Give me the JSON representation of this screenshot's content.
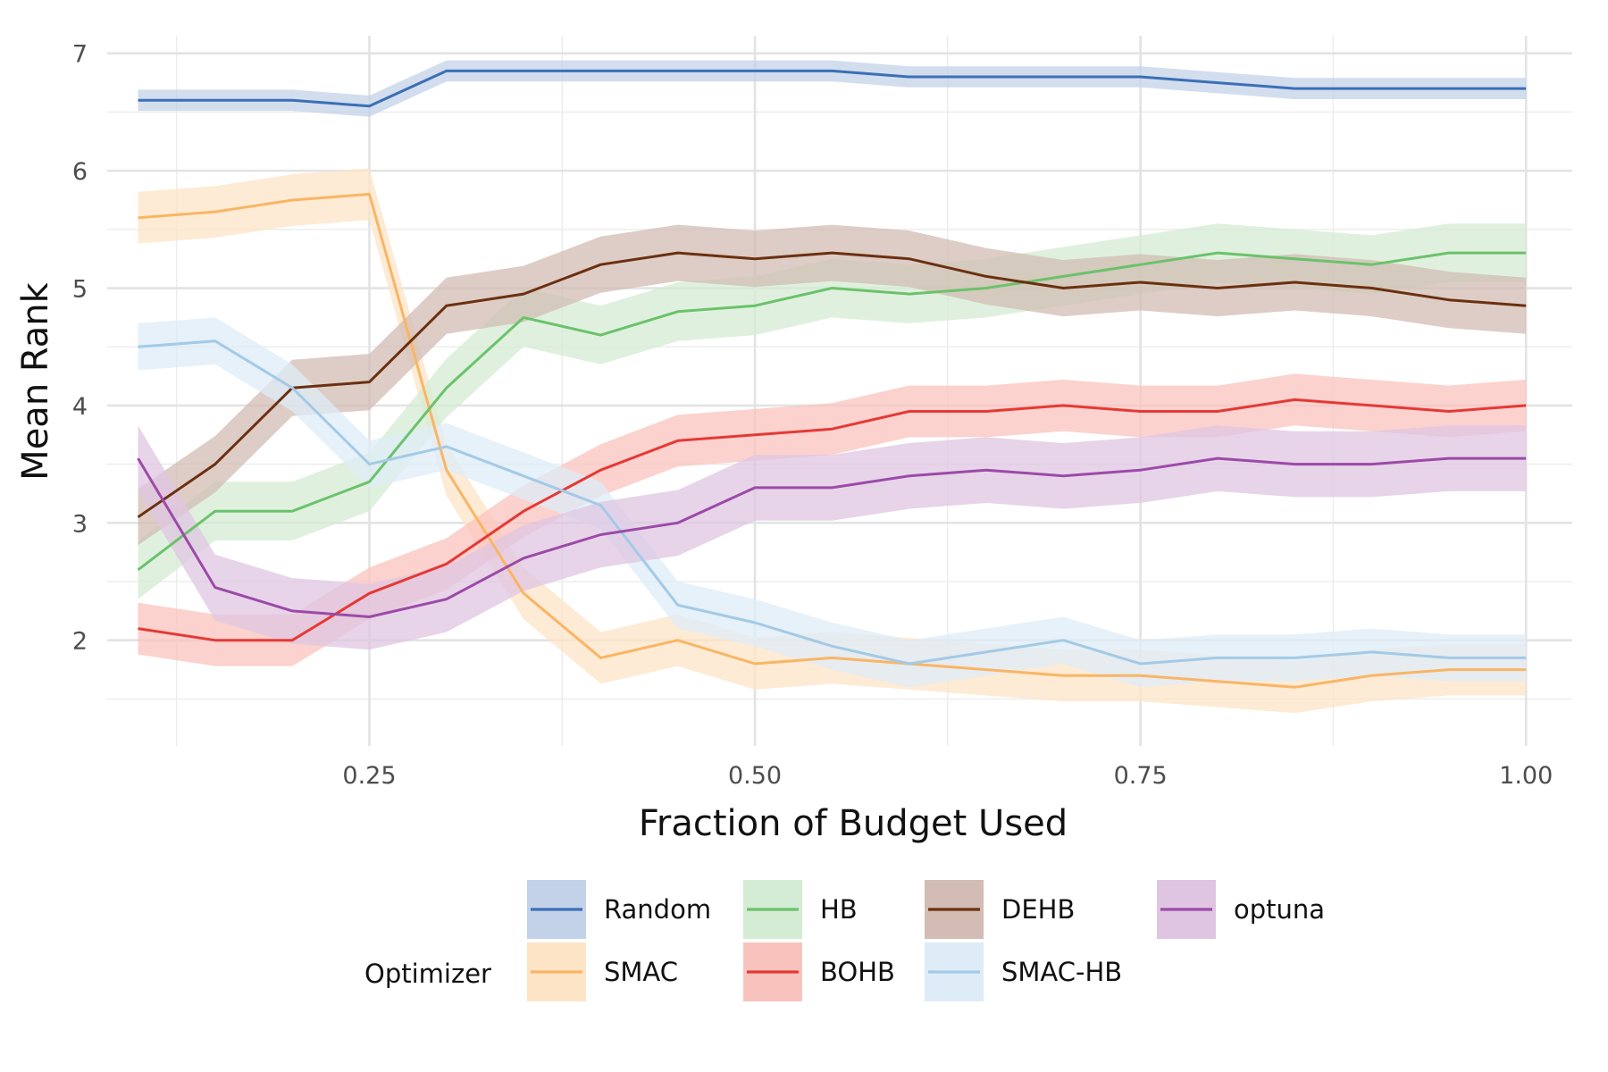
{
  "chart_data": {
    "type": "line",
    "xlabel": "Fraction of Budget Used",
    "ylabel": "Mean Rank",
    "xlim": [
      0.08,
      1.03
    ],
    "ylim": [
      1.1,
      7.15
    ],
    "x_ticks": [
      0.25,
      0.5,
      0.75,
      1.0
    ],
    "x_tick_labels": [
      "0.25",
      "0.50",
      "0.75",
      "1.00"
    ],
    "y_ticks": [
      2,
      3,
      4,
      5,
      6,
      7
    ],
    "y_tick_labels": [
      "2",
      "3",
      "4",
      "5",
      "6",
      "7"
    ],
    "grid": true,
    "legend_position": "bottom",
    "legend_title": "Optimizer",
    "x": [
      0.1,
      0.15,
      0.2,
      0.25,
      0.3,
      0.35,
      0.4,
      0.45,
      0.5,
      0.55,
      0.6,
      0.65,
      0.7,
      0.75,
      0.8,
      0.85,
      0.9,
      0.95,
      1.0
    ],
    "series": [
      {
        "name": "Random",
        "color": "#3b6fb6",
        "band_color": "#c3d2e8",
        "band_width": 0.09,
        "values": [
          6.6,
          6.6,
          6.6,
          6.55,
          6.85,
          6.85,
          6.85,
          6.85,
          6.85,
          6.85,
          6.8,
          6.8,
          6.8,
          6.8,
          6.75,
          6.7,
          6.7,
          6.7,
          6.7
        ]
      },
      {
        "name": "SMAC",
        "color": "#f9b565",
        "band_color": "#fde4c7",
        "band_width": 0.22,
        "values": [
          5.6,
          5.65,
          5.75,
          5.8,
          3.45,
          2.4,
          1.85,
          2.0,
          1.8,
          1.85,
          1.8,
          1.75,
          1.7,
          1.7,
          1.65,
          1.6,
          1.7,
          1.75,
          1.75
        ]
      },
      {
        "name": "HB",
        "color": "#6bc26b",
        "band_color": "#d4ecd3",
        "band_width": 0.25,
        "values": [
          2.6,
          3.1,
          3.1,
          3.35,
          4.15,
          4.75,
          4.6,
          4.8,
          4.85,
          5.0,
          4.95,
          5.0,
          5.1,
          5.2,
          5.3,
          5.25,
          5.2,
          5.3,
          5.3
        ]
      },
      {
        "name": "BOHB",
        "color": "#e53935",
        "band_color": "#f9c3bd",
        "band_width": 0.22,
        "values": [
          2.1,
          2.0,
          2.0,
          2.4,
          2.65,
          3.1,
          3.45,
          3.7,
          3.75,
          3.8,
          3.95,
          3.95,
          4.0,
          3.95,
          3.95,
          4.05,
          4.0,
          3.95,
          4.0
        ]
      },
      {
        "name": "DEHB",
        "color": "#6b3010",
        "band_color": "#d2bcb3",
        "band_width": 0.24,
        "values": [
          3.05,
          3.5,
          4.15,
          4.2,
          4.85,
          4.95,
          5.2,
          5.3,
          5.25,
          5.3,
          5.25,
          5.1,
          5.0,
          5.05,
          5.0,
          5.05,
          5.0,
          4.9,
          4.85
        ]
      },
      {
        "name": "SMAC-HB",
        "color": "#a3cae6",
        "band_color": "#deecf7",
        "band_width": 0.2,
        "values": [
          4.5,
          4.55,
          4.15,
          3.5,
          3.65,
          3.4,
          3.15,
          2.3,
          2.15,
          1.95,
          1.8,
          1.9,
          2.0,
          1.8,
          1.85,
          1.85,
          1.9,
          1.85,
          1.85
        ]
      },
      {
        "name": "optuna",
        "color": "#9c4aa8",
        "band_color": "#dfc5e2",
        "band_width": 0.28,
        "values": [
          3.55,
          2.45,
          2.25,
          2.2,
          2.35,
          2.7,
          2.9,
          3.0,
          3.3,
          3.3,
          3.4,
          3.45,
          3.4,
          3.45,
          3.55,
          3.5,
          3.5,
          3.55,
          3.55
        ]
      }
    ]
  }
}
